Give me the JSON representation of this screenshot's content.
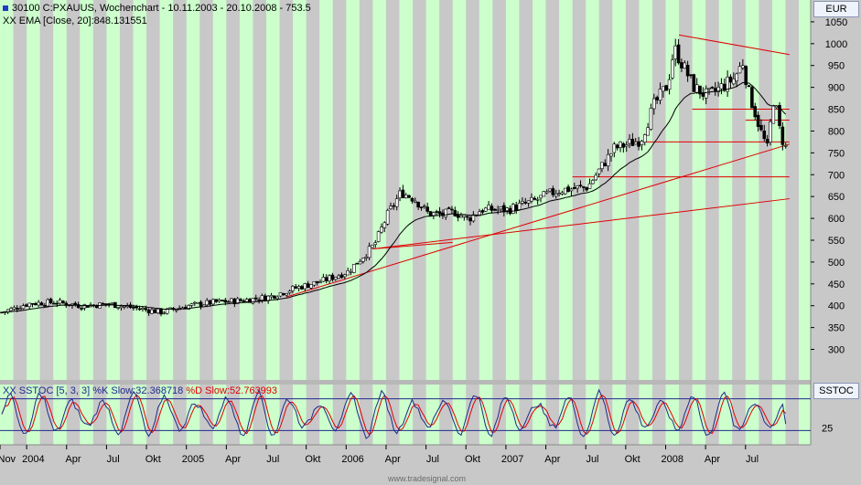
{
  "header": {
    "line1": "30100  C:PXAUUS, Wochenchart - 10.11.2003 - 20.10.2008 - 753.5",
    "line2": "XX EMA [Close, 20]:848.131551"
  },
  "price_unit": "EUR",
  "stoch_unit": "SSTOC",
  "stoch": {
    "label": "XX SSTOC [5, 3, 3] %K Slow:32.368718",
    "d_label": "%D Slow:52.763993"
  },
  "footer": "www.tradesignal.com",
  "colors": {
    "green_band": "#ccffcc",
    "gray_band": "#c8c8c8",
    "k_line": "#1e2a8c",
    "d_line": "#e00000",
    "trendline": "#e00000",
    "candle_up": "#ffffff",
    "candle_down": "#000000"
  },
  "chart_data": [
    {
      "type": "candlestick",
      "title": "C:PXAUUS, Wochenchart",
      "ylabel": "EUR",
      "ylim": [
        230,
        1100
      ],
      "yticks": [
        300,
        350,
        400,
        450,
        500,
        550,
        600,
        650,
        700,
        750,
        800,
        850,
        900,
        950,
        1000,
        1050
      ],
      "x_range": [
        "2003-11",
        "2008-10"
      ],
      "x_ticks": [
        "Nov",
        "2004",
        "Apr",
        "Jul",
        "Okt",
        "2005",
        "Apr",
        "Jul",
        "Okt",
        "2006",
        "Apr",
        "Jul",
        "Okt",
        "2007",
        "Apr",
        "Jul",
        "Okt",
        "2008",
        "Apr",
        "Jul"
      ],
      "x_tick_months": [
        0,
        2,
        5,
        8,
        11,
        14,
        17,
        20,
        23,
        26,
        29,
        32,
        35,
        38,
        41,
        44,
        47,
        50,
        53,
        56
      ],
      "close_path": [
        [
          0,
          385
        ],
        [
          2,
          405
        ],
        [
          4,
          408
        ],
        [
          6,
          400
        ],
        [
          8,
          404
        ],
        [
          10,
          395
        ],
        [
          12,
          385
        ],
        [
          14,
          400
        ],
        [
          16,
          408
        ],
        [
          18,
          412
        ],
        [
          20,
          420
        ],
        [
          22,
          440
        ],
        [
          24,
          456
        ],
        [
          26,
          478
        ],
        [
          28,
          540
        ],
        [
          29,
          610
        ],
        [
          30,
          660
        ],
        [
          31,
          645
        ],
        [
          32,
          612
        ],
        [
          33,
          608
        ],
        [
          34,
          615
        ],
        [
          35,
          598
        ],
        [
          36,
          620
        ],
        [
          38,
          620
        ],
        [
          40,
          640
        ],
        [
          41,
          655
        ],
        [
          42,
          665
        ],
        [
          44,
          672
        ],
        [
          46,
          760
        ],
        [
          48,
          780
        ],
        [
          49,
          860
        ],
        [
          50,
          905
        ],
        [
          50.5,
          990
        ],
        [
          51,
          960
        ],
        [
          52,
          900
        ],
        [
          53,
          880
        ],
        [
          54,
          900
        ],
        [
          55,
          920
        ],
        [
          55.7,
          960
        ],
        [
          56,
          900
        ],
        [
          57,
          800
        ],
        [
          57.5,
          760
        ],
        [
          58,
          880
        ],
        [
          58.5,
          790
        ],
        [
          59,
          753.5
        ]
      ],
      "ema": {
        "name": "EMA [Close, 20]",
        "last": 848.131551
      },
      "trendlines": [
        {
          "from": [
            21.5,
            420
          ],
          "to": [
            59.3,
            770
          ]
        },
        {
          "from": [
            28,
            530
          ],
          "to": [
            59.3,
            645
          ]
        },
        {
          "from": [
            28,
            530
          ],
          "to": [
            34,
            545
          ]
        },
        {
          "from": [
            51,
            1020
          ],
          "to": [
            59.3,
            975
          ]
        },
        {
          "from": [
            47.5,
            775
          ],
          "to": [
            59.3,
            775
          ]
        },
        {
          "from": [
            52,
            850
          ],
          "to": [
            59.3,
            850
          ]
        },
        {
          "from": [
            56,
            825
          ],
          "to": [
            59.3,
            825
          ]
        },
        {
          "from": [
            43,
            695
          ],
          "to": [
            59.3,
            695
          ]
        }
      ]
    },
    {
      "type": "line",
      "title": "SSTOC [5, 3, 3]",
      "ylim": [
        0,
        100
      ],
      "yticks": [
        25
      ],
      "levels": [
        20,
        80
      ],
      "series": [
        {
          "name": "%K Slow",
          "last": 32.368718
        },
        {
          "name": "%D Slow",
          "last": 52.763993
        }
      ]
    }
  ]
}
